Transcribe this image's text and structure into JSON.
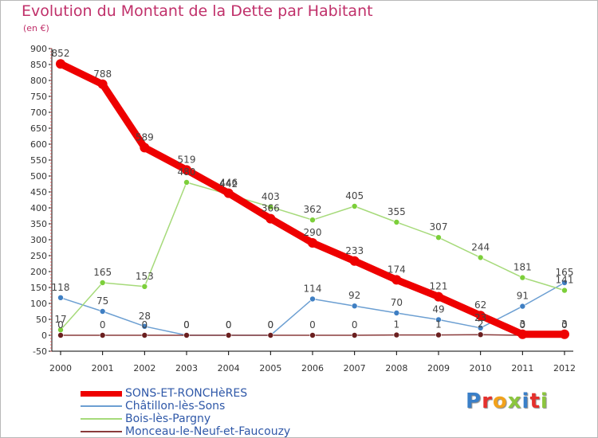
{
  "chart_title": "Evolution du Montant de la Dette par Habitant",
  "chart_subtitle": "(en €)",
  "brand": {
    "text": "Proxiti",
    "letters": [
      {
        "ch": "P",
        "color": "#3a7fc8"
      },
      {
        "ch": "r",
        "color": "#e5302c"
      },
      {
        "ch": "o",
        "color": "#f2a21b"
      },
      {
        "ch": "x",
        "color": "#8cc63e"
      },
      {
        "ch": "i",
        "color": "#3a7fc8"
      },
      {
        "ch": "t",
        "color": "#e5302c"
      },
      {
        "ch": "i",
        "color": "#8cc63e"
      }
    ]
  },
  "chart_data": {
    "type": "line",
    "title": "Evolution du Montant de la Dette par Habitant",
    "subtitle": "(en €)",
    "x": [
      "2000",
      "2001",
      "2002",
      "2003",
      "2004",
      "2005",
      "2006",
      "2007",
      "2008",
      "2009",
      "2010",
      "2011",
      "2012"
    ],
    "ylim": [
      -50,
      900
    ],
    "yticks": [
      -50,
      0,
      50,
      100,
      150,
      200,
      250,
      300,
      350,
      400,
      450,
      500,
      550,
      600,
      650,
      700,
      750,
      800,
      850,
      900
    ],
    "grid": false,
    "legend_position": "bottom-left",
    "series": [
      {
        "name": "SONS-ET-RONCHèRES",
        "color": "#ee0000",
        "line_width": 9,
        "marker_radius": 6,
        "marker_fill": "#ee0000",
        "values": [
          852,
          788,
          589,
          519,
          446,
          366,
          290,
          233,
          174,
          121,
          62,
          3,
          3
        ],
        "labels": [
          "852",
          "788",
          "589",
          "519",
          "446",
          "366",
          "290",
          "233",
          "174",
          "121",
          "62",
          "3",
          "3"
        ]
      },
      {
        "name": "Châtillon-lès-Sons",
        "color": "#6c9fd2",
        "line_width": 1.5,
        "marker_radius": 3.5,
        "marker_fill": "#3f7fc3",
        "values": [
          118,
          75,
          28,
          0,
          0,
          0,
          114,
          92,
          70,
          49,
          23,
          91,
          165
        ],
        "labels": [
          "118",
          "75",
          "28",
          "0",
          "0",
          "0",
          "114",
          "92",
          "70",
          "49",
          "23",
          "91",
          "165"
        ]
      },
      {
        "name": "Bois-lès-Pargny",
        "color": "#a6da7a",
        "line_width": 1.5,
        "marker_radius": 3.5,
        "marker_fill": "#7ccf3a",
        "values": [
          17,
          165,
          153,
          480,
          442,
          403,
          362,
          405,
          355,
          307,
          244,
          181,
          141
        ],
        "labels": [
          "17",
          "165",
          "153",
          "480",
          "442",
          "403",
          "362",
          "405",
          "355",
          "307",
          "244",
          "181",
          "141"
        ]
      },
      {
        "name": "Monceau-le-Neuf-et-Faucouzy",
        "color": "#8a3b3b",
        "line_width": 1.5,
        "marker_radius": 3.5,
        "marker_fill": "#6b1f1f",
        "values": [
          0,
          0,
          0,
          0,
          0,
          0,
          0,
          0,
          1,
          1,
          2,
          0,
          0
        ],
        "labels": [
          "0",
          "0",
          "0",
          "0",
          "0",
          "0",
          "0",
          "0",
          "1",
          "1",
          "2",
          "0",
          "0"
        ]
      }
    ]
  }
}
